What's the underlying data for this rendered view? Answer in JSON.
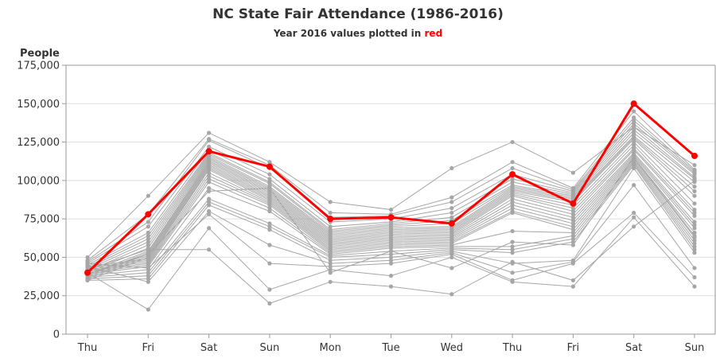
{
  "chart_data": {
    "type": "line",
    "title": "NC State Fair Attendance (1986-2016)",
    "subtitle_prefix": "Year 2016 values plotted in ",
    "subtitle_highlight": "red",
    "ylabel": "People",
    "xlabel": "",
    "ylim": [
      0,
      175000
    ],
    "yticks": [
      0,
      25000,
      50000,
      75000,
      100000,
      125000,
      150000,
      175000
    ],
    "ytick_labels": [
      "0",
      "25,000",
      "50,000",
      "75,000",
      "100,000",
      "125,000",
      "150,000",
      "175,000"
    ],
    "categories": [
      "Thu",
      "Fri",
      "Sat",
      "Sun",
      "Mon",
      "Tue",
      "Wed",
      "Thu",
      "Fri",
      "Sat",
      "Sun"
    ],
    "grid": true,
    "colors": {
      "other_years": "#a6a6a6",
      "highlight": "#ff0000",
      "grid": "#dddddd",
      "axis": "#999999"
    },
    "highlight_series": {
      "name": "2016",
      "values": [
        40000,
        78000,
        119000,
        109000,
        75000,
        76000,
        72000,
        104000,
        85000,
        150000,
        116000
      ]
    },
    "series": [
      {
        "values": [
          50000,
          90000,
          131000,
          112000,
          86000,
          81000,
          108000,
          125000,
          105000,
          135000,
          110000
        ]
      },
      {
        "values": [
          48000,
          78000,
          127000,
          110000,
          79000,
          78000,
          89000,
          112000,
          95000,
          145000,
          107000
        ]
      },
      {
        "values": [
          47000,
          73000,
          126000,
          108000,
          76000,
          77000,
          86000,
          108000,
          94000,
          141000,
          106000
        ]
      },
      {
        "values": [
          46000,
          70000,
          122000,
          104000,
          73000,
          75000,
          82000,
          104000,
          93000,
          139000,
          105000
        ]
      },
      {
        "values": [
          45000,
          66000,
          120000,
          101000,
          70000,
          73000,
          79000,
          101000,
          92000,
          137000,
          104000
        ]
      },
      {
        "values": [
          44000,
          64000,
          118000,
          99000,
          68000,
          72000,
          76000,
          99000,
          91000,
          135000,
          102000
        ]
      },
      {
        "values": [
          43000,
          62000,
          117000,
          98000,
          67000,
          71000,
          74000,
          97000,
          90000,
          133000,
          101000
        ]
      },
      {
        "values": [
          42000,
          60000,
          116000,
          96000,
          66000,
          70000,
          72000,
          96000,
          89000,
          131000,
          99000
        ]
      },
      {
        "values": [
          41000,
          58000,
          115000,
          95000,
          65000,
          69000,
          70000,
          95000,
          88000,
          129000,
          96000
        ]
      },
      {
        "values": [
          40000,
          56000,
          114000,
          94000,
          64000,
          68000,
          69000,
          94000,
          87000,
          128000,
          93000
        ]
      },
      {
        "values": [
          39000,
          54000,
          113000,
          93000,
          63000,
          67000,
          68000,
          93000,
          86000,
          127000,
          90000
        ]
      },
      {
        "values": [
          38000,
          53000,
          112000,
          92000,
          62000,
          66000,
          67000,
          92000,
          84000,
          125000,
          85000
        ]
      },
      {
        "values": [
          37000,
          52000,
          111000,
          91000,
          61000,
          65000,
          66000,
          91000,
          82000,
          123000,
          81000
        ]
      },
      {
        "values": [
          36000,
          51000,
          110000,
          90000,
          60000,
          64000,
          65000,
          90000,
          80000,
          121000,
          79000
        ]
      },
      {
        "values": [
          35000,
          50000,
          109000,
          89000,
          59000,
          63000,
          64000,
          88000,
          78000,
          120000,
          77000
        ]
      },
      {
        "values": [
          44000,
          49000,
          108000,
          88000,
          58000,
          62000,
          63000,
          86000,
          76000,
          118000,
          73000
        ]
      },
      {
        "values": [
          43000,
          48000,
          107000,
          87000,
          57000,
          61000,
          62000,
          84000,
          74000,
          117000,
          71000
        ]
      },
      {
        "values": [
          42000,
          47000,
          105000,
          86000,
          56000,
          60000,
          61000,
          82000,
          72000,
          116000,
          69000
        ]
      },
      {
        "values": [
          41000,
          46000,
          103000,
          85000,
          55000,
          59000,
          60000,
          80000,
          70000,
          115000,
          66000
        ]
      },
      {
        "values": [
          40000,
          45000,
          101000,
          84000,
          54000,
          58000,
          59000,
          79000,
          68000,
          114000,
          63000
        ]
      },
      {
        "values": [
          39000,
          44000,
          99000,
          82000,
          53000,
          57000,
          58000,
          67000,
          66000,
          113000,
          61000
        ]
      },
      {
        "values": [
          38000,
          42000,
          95000,
          80000,
          52000,
          56000,
          57000,
          57000,
          64000,
          112000,
          59000
        ]
      },
      {
        "values": [
          37000,
          40000,
          88000,
          72000,
          51000,
          54000,
          56000,
          55000,
          62000,
          111000,
          57000
        ]
      },
      {
        "values": [
          36000,
          38000,
          86000,
          70000,
          50000,
          52000,
          55000,
          53000,
          60000,
          110000,
          55000
        ]
      },
      {
        "values": [
          35000,
          36000,
          84000,
          68000,
          48000,
          50000,
          54000,
          46000,
          48000,
          108000,
          53000
        ]
      },
      {
        "values": [
          44000,
          34000,
          80000,
          58000,
          46000,
          48000,
          53000,
          40000,
          47000,
          97000,
          43000
        ]
      },
      {
        "values": [
          46000,
          43000,
          78000,
          46000,
          44000,
          46000,
          52000,
          35000,
          46000,
          79000,
          37000
        ]
      },
      {
        "values": [
          40000,
          16000,
          69000,
          29000,
          42000,
          38000,
          50000,
          34000,
          31000,
          76000,
          31000
        ]
      },
      {
        "values": [
          42000,
          55000,
          55000,
          20000,
          34000,
          31000,
          26000,
          47000,
          35000,
          70000,
          100000
        ]
      },
      {
        "values": [
          39000,
          52000,
          93000,
          95000,
          40000,
          54000,
          43000,
          60000,
          58000,
          115000,
          64000
        ]
      }
    ]
  }
}
